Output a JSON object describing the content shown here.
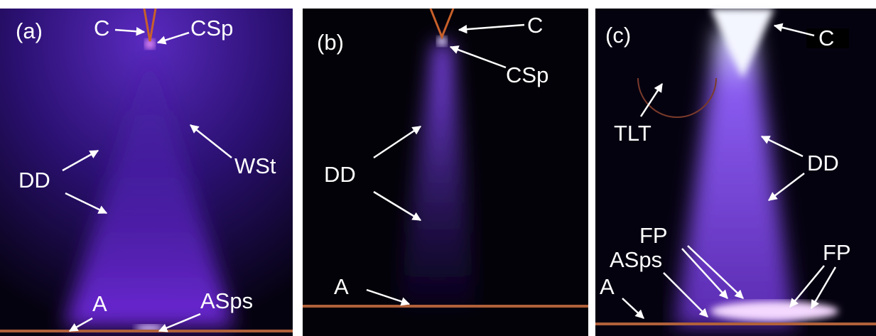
{
  "panels": [
    {
      "tag": "(a)",
      "labels": [
        "C",
        "CSp",
        "WSt",
        "DD",
        "A",
        "ASps"
      ]
    },
    {
      "tag": "(b)",
      "labels": [
        "C",
        "CSp",
        "DD",
        "A"
      ]
    },
    {
      "tag": "(c)",
      "labels": [
        "C",
        "TLT",
        "DD",
        "FP",
        "ASps",
        "FP",
        "A"
      ]
    }
  ]
}
